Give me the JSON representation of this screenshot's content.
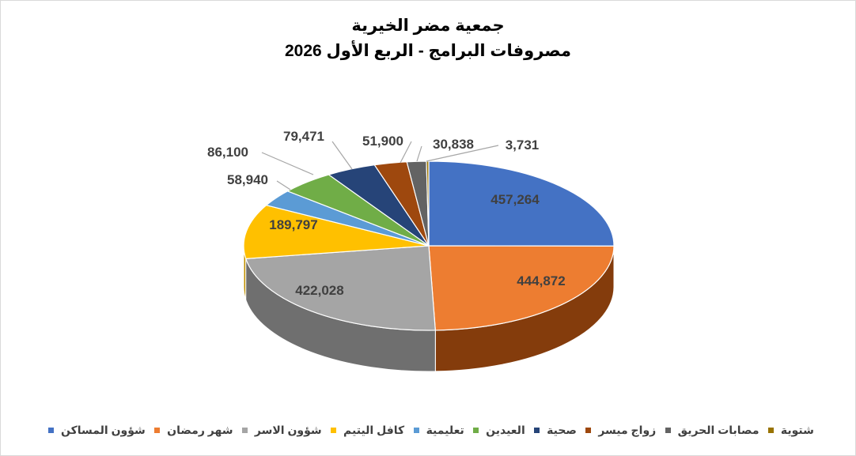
{
  "chart_data": {
    "type": "pie",
    "style": "3d-pie",
    "title": "جمعية مضر الخيرية",
    "subtitle": "مصروفات البرامج - الربع الأول 2026",
    "legend_position": "bottom",
    "slices": [
      {
        "label": "شؤون المساكن",
        "value": 457264,
        "display": "457,264",
        "color": "#4472c4",
        "side": "#2f528f"
      },
      {
        "label": "شهر رمضان",
        "value": 444872,
        "display": "444,872",
        "color": "#ed7d31",
        "side": "#843c0c"
      },
      {
        "label": "شؤون الاسر",
        "value": 422028,
        "display": "422,028",
        "color": "#a5a5a5",
        "side": "#6f6f6f"
      },
      {
        "label": "كافل اليتيم",
        "value": 189797,
        "display": "189,797",
        "color": "#ffc000",
        "side": "#bf9000"
      },
      {
        "label": "تعليمية",
        "value": 58940,
        "display": "58,940",
        "color": "#5b9bd5",
        "side": "#2e75b6"
      },
      {
        "label": "العيدين",
        "value": 86100,
        "display": "86,100",
        "color": "#70ad47",
        "side": "#548235"
      },
      {
        "label": "صحية",
        "value": 79471,
        "display": "79,471",
        "color": "#264478",
        "side": "#1a2f54"
      },
      {
        "label": "زواج ميسر",
        "value": 51900,
        "display": "51,900",
        "color": "#9e480e",
        "side": "#6b300a"
      },
      {
        "label": "مصابات الحريق",
        "value": 30838,
        "display": "30,838",
        "color": "#636363",
        "side": "#404040"
      },
      {
        "label": "شتوية",
        "value": 3731,
        "display": "3,731",
        "color": "#997300",
        "side": "#665000"
      }
    ]
  }
}
